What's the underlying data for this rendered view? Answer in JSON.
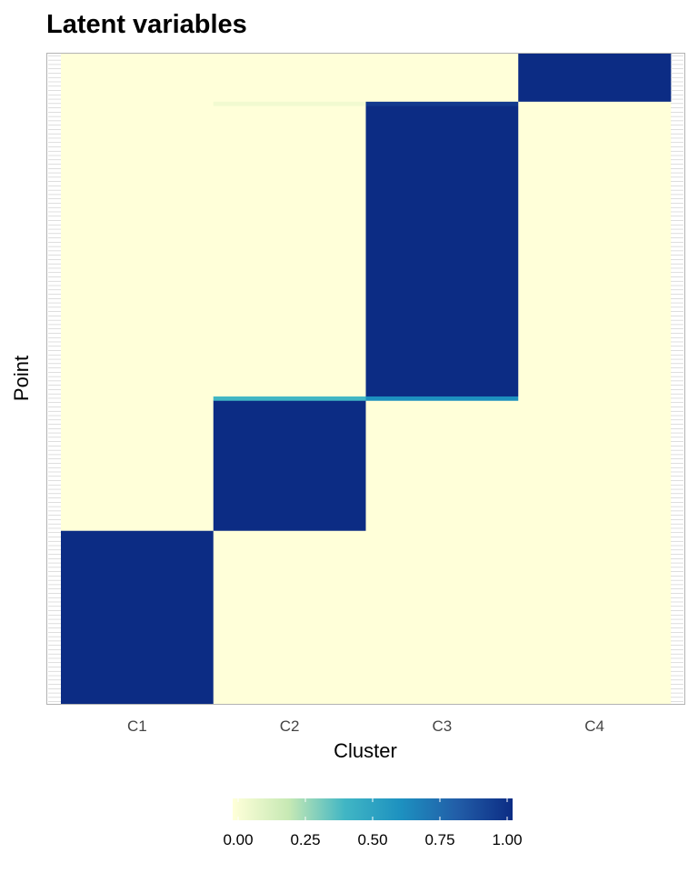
{
  "chart_data": {
    "type": "heatmap",
    "title": "Latent variables",
    "xlabel": "Cluster",
    "ylabel": "Point",
    "x_categories": [
      "C1",
      "C2",
      "C3",
      "C4"
    ],
    "y_tick_labels_visible": false,
    "n_points": 150,
    "blocks": [
      {
        "cluster": "C1",
        "points_from": 1,
        "points_to": 40,
        "value": 1.0
      },
      {
        "cluster": "C2",
        "points_from": 41,
        "points_to": 70,
        "value": 1.0
      },
      {
        "cluster": "C2",
        "points_from": 71,
        "points_to": 71,
        "value": 0.4
      },
      {
        "cluster": "C3",
        "points_from": 71,
        "points_to": 71,
        "value": 0.6
      },
      {
        "cluster": "C3",
        "points_from": 72,
        "points_to": 138,
        "value": 1.0
      },
      {
        "cluster": "C2",
        "points_from": 139,
        "points_to": 139,
        "value": 0.05
      },
      {
        "cluster": "C3",
        "points_from": 139,
        "points_to": 139,
        "value": 0.95
      },
      {
        "cluster": "C4",
        "points_from": 140,
        "points_to": 150,
        "value": 1.0
      }
    ],
    "default_value": 0.0,
    "colorbar": {
      "range": [
        0,
        1
      ],
      "ticks": [
        0.0,
        0.25,
        0.5,
        0.75,
        1.0
      ],
      "tick_labels": [
        "0.00",
        "0.25",
        "0.50",
        "0.75",
        "1.00"
      ],
      "palette": [
        "#ffffd9",
        "#c7e9b4",
        "#41b6c4",
        "#1d91c0",
        "#225ea8",
        "#0c2c84"
      ],
      "position": "bottom"
    },
    "grid": false
  }
}
